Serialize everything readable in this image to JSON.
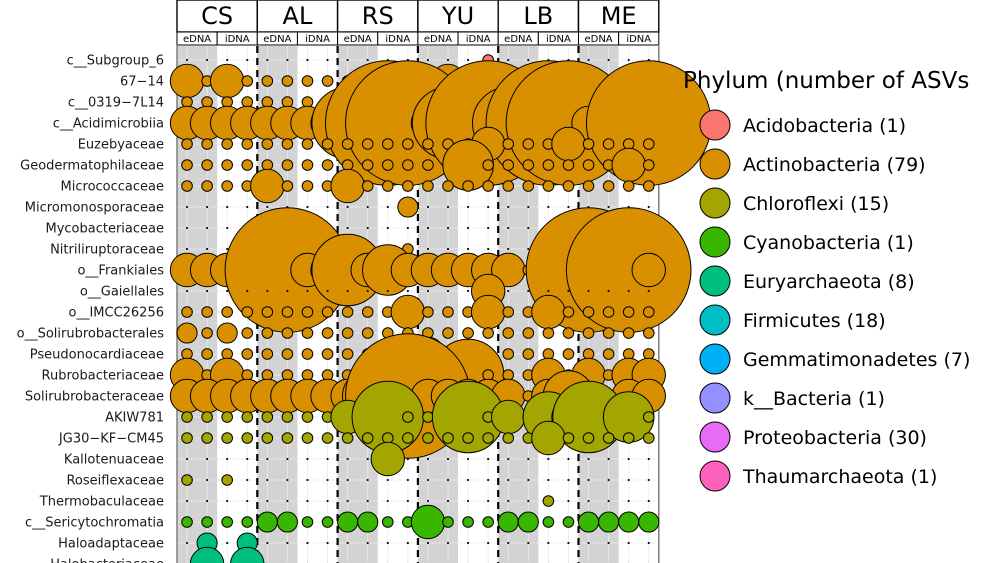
{
  "chart_data": {
    "type": "bubble-grid",
    "facets": [
      "CS",
      "AL",
      "RS",
      "YU",
      "LB",
      "ME"
    ],
    "sub_columns": [
      "eDNA",
      "iDNA"
    ],
    "replicates_per_sub_column": 2,
    "rows": [
      {
        "name": "c__Subgroup_6",
        "phylum": "Acidobacteria",
        "values": [
          0,
          0,
          0,
          0,
          0,
          0,
          0,
          0,
          0,
          0,
          0,
          0,
          0,
          0,
          0,
          1,
          0,
          0,
          0,
          0,
          0,
          0,
          0,
          0
        ]
      },
      {
        "name": "67−14",
        "phylum": "Actinobacteria",
        "values": [
          2,
          1,
          2,
          1,
          1,
          1,
          1,
          1,
          1,
          1,
          1,
          1,
          1,
          2,
          1,
          2,
          1,
          1,
          1,
          1,
          1,
          1,
          1,
          1
        ]
      },
      {
        "name": "c__0319−7L14",
        "phylum": "Actinobacteria",
        "values": [
          1,
          1,
          1,
          1,
          1,
          1,
          1,
          1,
          1,
          1,
          1,
          2,
          1,
          2,
          1,
          2,
          1,
          1,
          1,
          2.5,
          1,
          1,
          1,
          1
        ]
      },
      {
        "name": "c__Acidimicrobiia",
        "phylum": "Actinobacteria",
        "values": [
          2,
          2,
          2,
          2,
          2,
          2,
          2,
          2,
          3,
          2,
          4,
          4,
          2,
          3,
          2,
          4,
          3,
          3,
          4,
          4,
          2,
          2,
          2,
          4
        ]
      },
      {
        "name": "Euzebyaceae",
        "phylum": "Actinobacteria",
        "values": [
          1,
          1,
          1,
          1,
          1,
          1,
          1,
          1,
          1,
          1,
          1,
          1,
          1,
          1,
          1,
          2,
          1,
          1,
          1,
          2,
          1,
          1,
          1,
          1
        ]
      },
      {
        "name": "Geodermatophilaceae",
        "phylum": "Actinobacteria",
        "values": [
          1,
          1,
          1,
          1,
          1,
          1,
          1,
          1,
          1,
          1,
          1,
          1,
          1,
          1,
          2.5,
          1,
          1,
          1,
          1,
          1,
          1,
          1,
          2,
          1
        ]
      },
      {
        "name": "Micrococcaceae",
        "phylum": "Actinobacteria",
        "values": [
          1,
          1,
          1,
          1,
          2,
          1,
          1,
          1,
          2,
          1,
          1,
          1,
          1,
          1,
          1,
          1,
          1,
          1,
          1,
          1,
          1,
          1,
          1,
          1
        ]
      },
      {
        "name": "Micromonosporaceae",
        "phylum": "Actinobacteria",
        "values": [
          0,
          0,
          0,
          0,
          0,
          0,
          0,
          0,
          0,
          0,
          0,
          1.5,
          0,
          0,
          0,
          0,
          0,
          0,
          0,
          0,
          0,
          0,
          0,
          0
        ]
      },
      {
        "name": "Mycobacteriaceae",
        "phylum": "Actinobacteria",
        "values": [
          0,
          0,
          0,
          0,
          0,
          0,
          1.5,
          0,
          0,
          0,
          0,
          0,
          0,
          0,
          0,
          0,
          0,
          0,
          0,
          0,
          0,
          0,
          0,
          0
        ]
      },
      {
        "name": "Nitriliruptoraceae",
        "phylum": "Actinobacteria",
        "values": [
          0,
          0,
          0,
          0,
          0,
          0,
          0,
          0,
          0,
          0,
          0,
          1,
          0,
          0,
          0,
          0,
          0,
          0,
          0,
          0,
          0,
          0,
          0,
          0
        ]
      },
      {
        "name": "o__Frankiales",
        "phylum": "Actinobacteria",
        "values": [
          2,
          2,
          2,
          2,
          2,
          4,
          2,
          2,
          3,
          2,
          2.5,
          2,
          2,
          2,
          2,
          2,
          2,
          1,
          2,
          2,
          4,
          2,
          4,
          2
        ]
      },
      {
        "name": "o__Gaiellales",
        "phylum": "Actinobacteria",
        "values": [
          0,
          0,
          0,
          0,
          0,
          0,
          0,
          0,
          0,
          0,
          0,
          0,
          0,
          0,
          0,
          2,
          0,
          0,
          0,
          0,
          0,
          0,
          0,
          0
        ]
      },
      {
        "name": "o__IMCC26256",
        "phylum": "Actinobacteria",
        "values": [
          1,
          1,
          1,
          1,
          1,
          1,
          1,
          1,
          1,
          1,
          1,
          2,
          1,
          1,
          1,
          2,
          1,
          1,
          2,
          1,
          1,
          1,
          1,
          1
        ]
      },
      {
        "name": "o__Solirubrobacterales",
        "phylum": "Actinobacteria",
        "values": [
          1.5,
          1,
          1.5,
          1,
          1,
          1,
          1,
          1,
          1,
          1,
          1,
          1,
          1,
          1,
          1,
          1,
          1,
          1,
          1,
          1,
          1,
          1,
          1,
          1
        ]
      },
      {
        "name": "Pseudonocardiaceae",
        "phylum": "Actinobacteria",
        "values": [
          1,
          1,
          1,
          1,
          1,
          1,
          1,
          1,
          1,
          1,
          1,
          1,
          2,
          1,
          1,
          1,
          1,
          1,
          1,
          1,
          1,
          1,
          1,
          1
        ]
      },
      {
        "name": "Rubrobacteriaceae",
        "phylum": "Actinobacteria",
        "values": [
          2,
          1,
          2,
          1,
          1,
          1,
          1,
          1,
          1,
          1,
          1,
          1,
          1,
          1,
          3,
          1,
          1,
          1,
          2,
          1,
          2,
          1,
          2,
          2
        ]
      },
      {
        "name": "Solirubrobacteraceae",
        "phylum": "Actinobacteria",
        "values": [
          2,
          2,
          2,
          2,
          2,
          2,
          2,
          2,
          2,
          2.5,
          2,
          4,
          2,
          2,
          2,
          2,
          2,
          1,
          2,
          2.5,
          1.5,
          1,
          2,
          2
        ]
      },
      {
        "name": "AKIW781",
        "phylum": "Chloroflexi",
        "values": [
          1,
          1,
          1,
          1,
          1,
          1,
          1,
          1,
          2,
          1,
          3,
          1,
          1,
          1,
          3,
          1,
          2,
          1,
          2.5,
          2,
          3,
          1,
          2.5,
          1
        ]
      },
      {
        "name": "JG30−KF−CM45",
        "phylum": "Chloroflexi",
        "values": [
          1,
          1,
          1,
          1,
          1,
          1,
          1,
          1,
          1,
          1,
          1,
          1,
          1,
          1,
          1,
          1,
          1,
          1,
          2,
          1,
          1,
          1,
          1,
          1
        ]
      },
      {
        "name": "Kallotenuaceae",
        "phylum": "Chloroflexi",
        "values": [
          0,
          0,
          0,
          0,
          0,
          0,
          0,
          0,
          0,
          0,
          2,
          0,
          0,
          0,
          0,
          0,
          0,
          0,
          0,
          0,
          0,
          0,
          0,
          0
        ]
      },
      {
        "name": "Roseiflexaceae",
        "phylum": "Chloroflexi",
        "values": [
          1,
          0,
          1,
          0,
          0,
          0,
          0,
          0,
          0,
          0,
          0,
          0,
          0,
          0,
          0,
          0,
          0,
          0,
          0,
          0,
          0,
          0,
          0,
          0
        ]
      },
      {
        "name": "Thermobaculaceae",
        "phylum": "Chloroflexi",
        "values": [
          0,
          0,
          0,
          0,
          0,
          0,
          0,
          0,
          0,
          0,
          0,
          0,
          0,
          0,
          0,
          0,
          0,
          0,
          1,
          0,
          0,
          0,
          0,
          0
        ]
      },
      {
        "name": "c__Sericytochromatia",
        "phylum": "Cyanobacteria",
        "values": [
          1,
          1,
          1,
          1,
          1.5,
          1.5,
          1,
          1,
          1.5,
          1.5,
          1,
          1,
          2,
          1,
          1,
          1,
          1.5,
          1.5,
          1,
          1,
          1.5,
          1.5,
          1.5,
          1.5
        ]
      },
      {
        "name": "Haloadaptaceae",
        "phylum": "Euryarchaeota",
        "values": [
          0,
          1.5,
          0,
          1.5,
          0,
          0,
          0,
          0,
          0,
          0,
          0,
          0,
          0,
          0,
          0,
          0,
          0,
          0,
          0,
          0,
          0,
          0,
          0,
          0
        ]
      },
      {
        "name": "Halobacteriaceae",
        "phylum": "Euryarchaeota",
        "values": [
          0,
          2,
          0,
          2,
          0,
          0,
          0,
          0,
          0,
          0,
          0,
          0,
          0,
          0,
          0,
          0,
          0,
          0,
          0,
          0,
          0,
          0,
          0,
          0
        ]
      }
    ],
    "legend": {
      "title": "Phylum (number of ASVs",
      "position": "right",
      "entries": [
        {
          "label": "Acidobacteria (1)",
          "name": "Acidobacteria",
          "color": "#F8766D"
        },
        {
          "label": "Actinobacteria (79)",
          "name": "Actinobacteria",
          "color": "#D89000"
        },
        {
          "label": "Chloroflexi (15)",
          "name": "Chloroflexi",
          "color": "#A3A500"
        },
        {
          "label": "Cyanobacteria (1)",
          "name": "Cyanobacteria",
          "color": "#39B600"
        },
        {
          "label": "Euryarchaeota (8)",
          "name": "Euryarchaeota",
          "color": "#00BF7D"
        },
        {
          "label": "Firmicutes (18)",
          "name": "Firmicutes",
          "color": "#00BFC4"
        },
        {
          "label": "Gemmatimonadetes (7)",
          "name": "Gemmatimonadetes",
          "color": "#00B0F6"
        },
        {
          "label": "k__Bacteria (1)",
          "name": "k__Bacteria",
          "color": "#9590FF"
        },
        {
          "label": "Proteobacteria (30)",
          "name": "Proteobacteria",
          "color": "#E76BF3"
        },
        {
          "label": "Thaumarchaeota (1)",
          "name": "Thaumarchaeota",
          "color": "#FF62BC"
        }
      ]
    }
  }
}
